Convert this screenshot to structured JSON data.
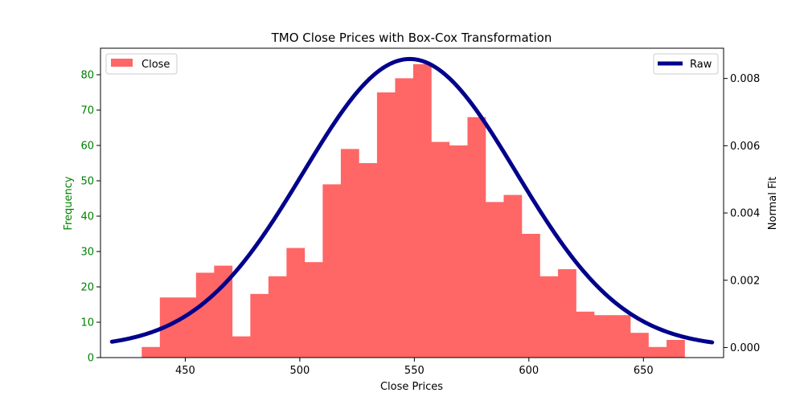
{
  "chart_data": {
    "type": "bar",
    "title": "TMO Close Prices with Box-Cox Transformation",
    "xlabel": "Close Prices",
    "ylabel_left": "Frequency",
    "ylabel_right": "Normal Fit",
    "xlim": [
      413,
      685
    ],
    "ylim_left": [
      0,
      87.5
    ],
    "ylim_right": [
      -0.0003,
      0.0089
    ],
    "x_ticks": [
      450,
      500,
      550,
      600,
      650
    ],
    "y_ticks_left": [
      0,
      10,
      20,
      30,
      40,
      50,
      60,
      70,
      80
    ],
    "y_ticks_right": [
      0.0,
      0.002,
      0.004,
      0.006,
      0.008
    ],
    "y_tick_labels_right": [
      "0.000",
      "0.002",
      "0.004",
      "0.006",
      "0.008"
    ],
    "histogram": {
      "name": "Close",
      "color": "#ff6666",
      "bin_width": 7.9,
      "bin_edges_start": 431,
      "counts": [
        3,
        17,
        17,
        24,
        26,
        6,
        18,
        23,
        31,
        27,
        49,
        59,
        55,
        75,
        79,
        83,
        61,
        60,
        68,
        44,
        46,
        35,
        23,
        25,
        13,
        12,
        12,
        7,
        3,
        5
      ]
    },
    "normal_fit": {
      "name": "Raw",
      "color": "#00008b",
      "mean": 548.0,
      "std": 46.5,
      "x_range": [
        418,
        680
      ]
    },
    "legend_left": {
      "label": "Close",
      "placement": "top-left"
    },
    "legend_right": {
      "label": "Raw",
      "placement": "top-right"
    },
    "axis_colors": {
      "left": "#008000",
      "right": "#000000"
    }
  }
}
